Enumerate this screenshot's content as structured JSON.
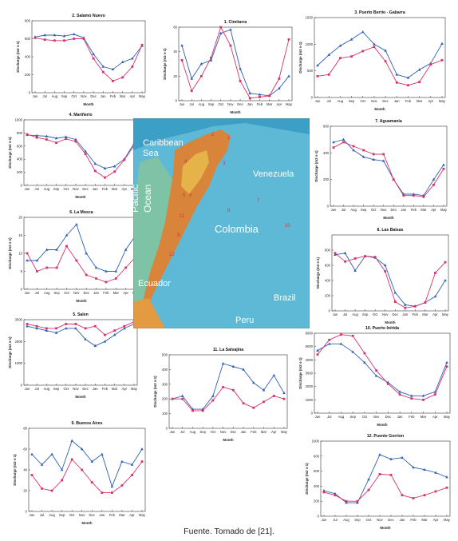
{
  "colors": {
    "blue": "#2f5fb0",
    "red": "#d6336c",
    "sea": "#3a9fc6",
    "land": "#5fb7d6",
    "mountain": "#d9843b",
    "lowland": "#e5b040"
  },
  "months": [
    "Jun",
    "Jul",
    "Aug",
    "Sep",
    "Oct",
    "Nov",
    "Dec",
    "Jan",
    "Feb",
    "Mar",
    "Apr",
    "May"
  ],
  "caption": "Fuente. Tomado de [21].",
  "map": {
    "labels": {
      "caribbean": "Caribbean",
      "sea": "Sea",
      "pacific": "Pacific",
      "ocean": "Ocean",
      "venezuela": "Venezuela",
      "colombia": "Colombia",
      "ecuador": "Ecuador",
      "brazil": "Brazil",
      "peru": "Peru"
    },
    "markers": [
      "1",
      "2",
      "3",
      "4",
      "5",
      "6",
      "7",
      "8",
      "9",
      "10",
      "11",
      "12"
    ]
  },
  "chart_data": [
    {
      "id": "p2",
      "type": "line",
      "title": "2. Salamo Nuevo",
      "xlabel": "Month",
      "ylabel": "Discharge (m3 s-1)",
      "ylim": [
        0,
        800
      ],
      "yticks": [
        0,
        200,
        400,
        600,
        800
      ],
      "categories": [
        "Jun",
        "Jul",
        "Aug",
        "Sep",
        "Oct",
        "Nov",
        "Dec",
        "Jan",
        "Feb",
        "Mar",
        "Apr",
        "May"
      ],
      "series": [
        {
          "color": "blue",
          "values": [
            620,
            640,
            640,
            630,
            650,
            610,
            430,
            290,
            260,
            340,
            380,
            520
          ]
        },
        {
          "color": "red",
          "values": [
            610,
            590,
            580,
            580,
            600,
            600,
            380,
            230,
            130,
            170,
            290,
            530
          ]
        }
      ]
    },
    {
      "id": "p1",
      "type": "line",
      "title": "1. Cimitarra",
      "xlabel": "Month",
      "ylabel": "Discharge (m3 s-1)",
      "ylim": [
        0,
        60
      ],
      "yticks": [
        0,
        20,
        40,
        60
      ],
      "categories": [
        "Jun",
        "Jul",
        "Aug",
        "Sep",
        "Oct",
        "Nov",
        "Dec",
        "Jan",
        "Feb",
        "Mar",
        "Apr",
        "May"
      ],
      "series": [
        {
          "color": "blue",
          "values": [
            45,
            18,
            30,
            33,
            55,
            58,
            26,
            6,
            5,
            4,
            10,
            20
          ]
        },
        {
          "color": "red",
          "values": [
            33,
            8,
            20,
            35,
            60,
            45,
            16,
            2,
            3,
            4,
            18,
            50
          ]
        }
      ]
    },
    {
      "id": "p3",
      "type": "line",
      "title": "3. Puerto Berrio - Gabarra",
      "xlabel": "Month",
      "ylabel": "Discharge (m3 s-1)",
      "ylim": [
        0,
        1500
      ],
      "yticks": [
        0,
        500,
        1000,
        1500
      ],
      "categories": [
        "Jun",
        "Jul",
        "Aug",
        "Sep",
        "Oct",
        "Nov",
        "Dec",
        "Jan",
        "Feb",
        "Mar",
        "Apr",
        "May"
      ],
      "series": [
        {
          "color": "blue",
          "values": [
            600,
            800,
            970,
            1090,
            1230,
            1000,
            880,
            430,
            370,
            520,
            640,
            1010
          ]
        },
        {
          "color": "red",
          "values": [
            400,
            430,
            740,
            770,
            870,
            950,
            680,
            280,
            230,
            290,
            620,
            700
          ]
        }
      ]
    },
    {
      "id": "p4",
      "type": "line",
      "title": "4. Mariñerio",
      "xlabel": "Month",
      "ylabel": "Discharge (m3 s-1)",
      "ylim": [
        0,
        1000
      ],
      "yticks": [
        0,
        200,
        400,
        600,
        800,
        1000
      ],
      "categories": [
        "Jun",
        "Jul",
        "Aug",
        "Sep",
        "Oct",
        "Nov",
        "Dec",
        "Jan",
        "Feb",
        "Mar",
        "Apr",
        "May"
      ],
      "series": [
        {
          "color": "blue",
          "values": [
            770,
            760,
            750,
            720,
            740,
            700,
            520,
            330,
            260,
            290,
            400,
            640
          ]
        },
        {
          "color": "red",
          "values": [
            780,
            730,
            700,
            650,
            710,
            670,
            480,
            220,
            120,
            210,
            390,
            610
          ]
        }
      ]
    },
    {
      "id": "p7",
      "type": "line",
      "title": "7. Aguamanía",
      "xlabel": "Month",
      "ylabel": "Discharge (m3 s-1)",
      "ylim": [
        0,
        600
      ],
      "yticks": [
        0,
        200,
        400,
        600
      ],
      "categories": [
        "Jun",
        "Jul",
        "Aug",
        "Sep",
        "Oct",
        "Nov",
        "Dec",
        "Jan",
        "Feb",
        "Mar",
        "Apr",
        "May"
      ],
      "series": [
        {
          "color": "blue",
          "values": [
            480,
            500,
            420,
            370,
            350,
            340,
            200,
            90,
            90,
            80,
            200,
            310
          ]
        },
        {
          "color": "red",
          "values": [
            440,
            480,
            450,
            420,
            390,
            390,
            200,
            80,
            80,
            70,
            160,
            280
          ]
        }
      ]
    },
    {
      "id": "p6",
      "type": "line",
      "title": "6. La Mosca",
      "xlabel": "Month",
      "ylabel": "Discharge (m3 s-1)",
      "ylim": [
        0,
        20
      ],
      "yticks": [
        0,
        5,
        10,
        15,
        20
      ],
      "categories": [
        "Jun",
        "Jul",
        "Aug",
        "Sep",
        "Oct",
        "Nov",
        "Dec",
        "Jan",
        "Feb",
        "Mar",
        "Apr",
        "May"
      ],
      "series": [
        {
          "color": "blue",
          "values": [
            8,
            8,
            11,
            11,
            15,
            18,
            10,
            6,
            5,
            5,
            11,
            15
          ]
        },
        {
          "color": "red",
          "values": [
            10,
            5,
            6,
            6,
            12,
            8,
            4,
            3,
            2,
            3,
            6,
            9
          ]
        }
      ]
    },
    {
      "id": "p8",
      "type": "line",
      "title": "8. Las Balsas",
      "xlabel": "Month",
      "ylabel": "Discharge (m3 s-1)",
      "ylim": [
        0,
        1000
      ],
      "yticks": [
        0,
        200,
        400,
        600,
        800
      ],
      "categories": [
        "Jun",
        "Jul",
        "Aug",
        "Sep",
        "Oct",
        "Nov",
        "Dec",
        "Jan",
        "Feb",
        "Mar",
        "Apr",
        "May"
      ],
      "series": [
        {
          "color": "blue",
          "values": [
            740,
            760,
            530,
            720,
            700,
            600,
            240,
            80,
            60,
            110,
            190,
            400
          ]
        },
        {
          "color": "red",
          "values": [
            760,
            650,
            690,
            720,
            710,
            520,
            120,
            40,
            60,
            110,
            500,
            640
          ]
        }
      ]
    },
    {
      "id": "p5",
      "type": "line",
      "title": "5. Salen",
      "xlabel": "Month",
      "ylabel": "Discharge (m3 s-1)",
      "ylim": [
        0,
        3000
      ],
      "yticks": [
        0,
        1000,
        2000,
        3000
      ],
      "categories": [
        "Jun",
        "Jul",
        "Aug",
        "Sep",
        "Oct",
        "Nov",
        "Dec",
        "Jan",
        "Feb",
        "Mar",
        "Apr",
        "May"
      ],
      "series": [
        {
          "color": "blue",
          "values": [
            2700,
            2600,
            2500,
            2400,
            2600,
            2600,
            2100,
            1800,
            2000,
            2300,
            2600,
            2800
          ]
        },
        {
          "color": "red",
          "values": [
            2800,
            2700,
            2600,
            2600,
            2800,
            2800,
            2600,
            2700,
            2300,
            2500,
            2700,
            2900
          ]
        }
      ]
    },
    {
      "id": "p10",
      "type": "line",
      "title": "10. Puerto Inírida",
      "xlabel": "Month",
      "ylabel": "Discharge (m3 s-1)",
      "ylim": [
        0,
        6000
      ],
      "yticks": [
        0,
        1000,
        2000,
        3000,
        4000,
        5000,
        6000
      ],
      "categories": [
        "Jun",
        "Jul",
        "Aug",
        "Sep",
        "Oct",
        "Nov",
        "Dec",
        "Jan",
        "Feb",
        "Mar",
        "Apr",
        "May"
      ],
      "series": [
        {
          "color": "blue",
          "values": [
            4700,
            5200,
            5200,
            4600,
            3800,
            2800,
            2300,
            1600,
            1300,
            1300,
            1600,
            3800
          ]
        },
        {
          "color": "red",
          "values": [
            4400,
            5500,
            5900,
            5800,
            4500,
            3200,
            2200,
            1400,
            1100,
            1000,
            1400,
            3500
          ]
        }
      ]
    },
    {
      "id": "p11",
      "type": "line",
      "title": "11. La Salvajina",
      "xlabel": "Month",
      "ylabel": "Discharge (m3 s-1)",
      "ylim": [
        0,
        500
      ],
      "yticks": [
        0,
        100,
        200,
        300,
        400,
        500
      ],
      "categories": [
        "Jun",
        "Jul",
        "Aug",
        "Sep",
        "Oct",
        "Nov",
        "Dec",
        "Jan",
        "Feb",
        "Mar",
        "Apr",
        "May"
      ],
      "series": [
        {
          "color": "blue",
          "values": [
            200,
            220,
            130,
            130,
            220,
            440,
            420,
            400,
            310,
            260,
            360,
            240
          ]
        },
        {
          "color": "red",
          "values": [
            200,
            200,
            120,
            120,
            190,
            280,
            260,
            170,
            140,
            180,
            220,
            200
          ]
        }
      ]
    },
    {
      "id": "p9",
      "type": "line",
      "title": "9. Buenos Aires",
      "xlabel": "Month",
      "ylabel": "Discharge (m3 s-1)",
      "ylim": [
        0,
        80
      ],
      "yticks": [
        0,
        20,
        40,
        60,
        80
      ],
      "categories": [
        "Jun",
        "Jul",
        "Aug",
        "Sep",
        "Oct",
        "Nov",
        "Dec",
        "Jan",
        "Feb",
        "Mar",
        "Apr",
        "May"
      ],
      "series": [
        {
          "color": "blue",
          "values": [
            55,
            45,
            55,
            40,
            68,
            60,
            48,
            55,
            24,
            48,
            45,
            60
          ]
        },
        {
          "color": "red",
          "values": [
            35,
            22,
            20,
            30,
            50,
            40,
            28,
            18,
            18,
            25,
            35,
            48
          ]
        }
      ]
    },
    {
      "id": "p12",
      "type": "line",
      "title": "12. Puente Gorrion",
      "xlabel": "Month",
      "ylabel": "Discharge (m3 s-1)",
      "ylim": [
        0,
        1000
      ],
      "yticks": [
        0,
        200,
        400,
        600,
        800,
        1000
      ],
      "categories": [
        "Jun",
        "Jul",
        "Aug",
        "Sep",
        "Oct",
        "Nov",
        "Dec",
        "Jan",
        "Feb",
        "Mar",
        "Apr",
        "May"
      ],
      "series": [
        {
          "color": "blue",
          "values": [
            340,
            300,
            180,
            180,
            490,
            820,
            760,
            780,
            650,
            620,
            580,
            520
          ]
        },
        {
          "color": "red",
          "values": [
            320,
            280,
            200,
            200,
            350,
            560,
            550,
            280,
            240,
            280,
            330,
            380
          ]
        }
      ]
    }
  ]
}
